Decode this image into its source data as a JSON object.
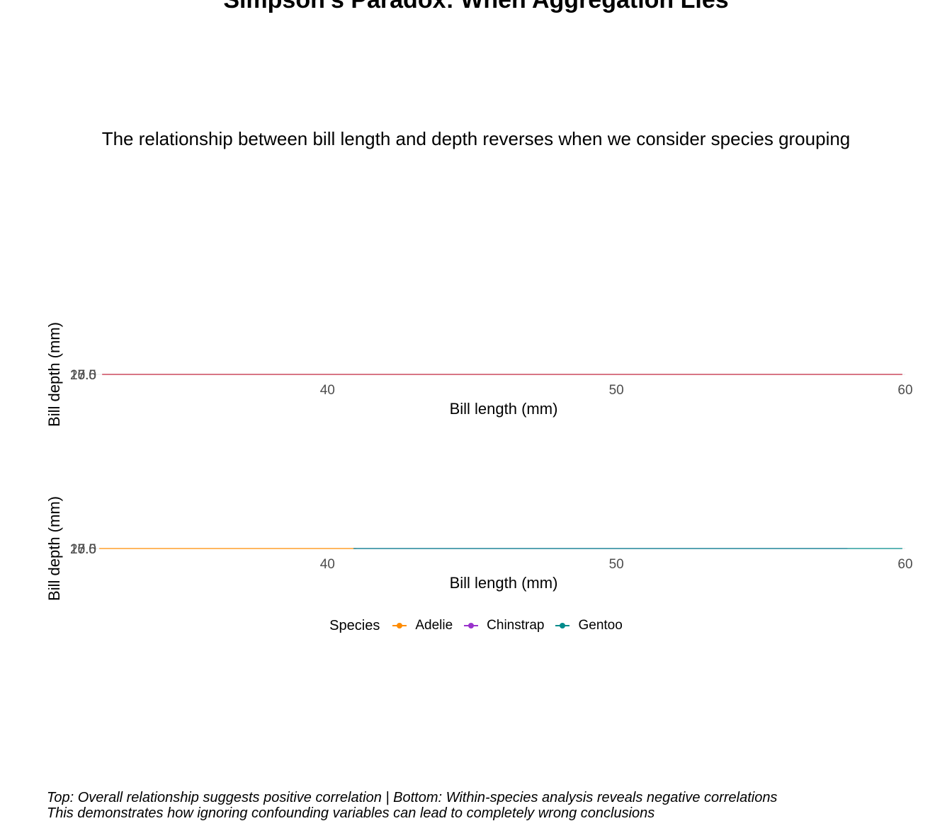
{
  "chart_data": [
    {
      "type": "scatter",
      "title": "Simpson's Paradox: When Aggregation Lies",
      "subtitle": "The relationship between bill length and depth reverses when we consider species grouping",
      "xlabel": "Bill length (mm)",
      "ylabel": "Bill depth (mm)",
      "xlim": [
        32,
        60
      ],
      "x_ticks": [
        "40",
        "50",
        "60"
      ],
      "y_ticks": [
        "15.0",
        "17.5",
        "20.0"
      ],
      "grid": true,
      "series": [
        {
          "color": "#c0243c",
          "line_x": [
            32.2,
            59.9
          ],
          "line_y": [
            17.5,
            17.5
          ]
        }
      ]
    },
    {
      "type": "scatter",
      "xlabel": "Bill length (mm)",
      "ylabel": "Bill depth (mm)",
      "xlim": [
        32,
        60
      ],
      "x_ticks": [
        "40",
        "50",
        "60"
      ],
      "y_ticks": [
        "15.0",
        "17.5",
        "20.0"
      ],
      "grid": true,
      "legend_position": "bottom",
      "legend_title": "Species",
      "series": [
        {
          "name": "Adelie",
          "color": "#ff8c00",
          "line_x": [
            32.1,
            41.0
          ],
          "line_y": [
            17.5,
            17.5
          ]
        },
        {
          "name": "Chinstrap",
          "color": "#9932cc",
          "line_x": [
            40.9,
            58.0
          ],
          "line_y": [
            17.5,
            17.5
          ]
        },
        {
          "name": "Gentoo",
          "color": "#008b8b",
          "line_x": [
            40.9,
            59.9
          ],
          "line_y": [
            17.5,
            17.5
          ]
        }
      ]
    }
  ],
  "caption_lines": [
    "Top: Overall relationship suggests positive correlation | Bottom: Within-species analysis reveals negative correlations",
    "This demonstrates how ignoring confounding variables can lead to completely wrong conclusions"
  ]
}
